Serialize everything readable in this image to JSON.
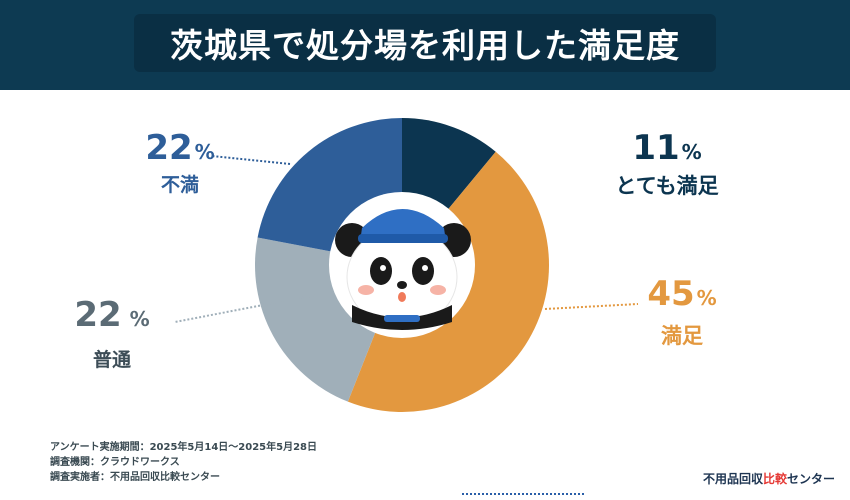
{
  "header": {
    "title": "茨城県で処分場を利用した満足度"
  },
  "chart_data": {
    "type": "pie",
    "categories": [
      "とても満足",
      "満足",
      "普通",
      "不満"
    ],
    "values": [
      11,
      45,
      22,
      22
    ],
    "unit": "%",
    "colors": [
      "#0c3550",
      "#e3983f",
      "#a0afb9",
      "#2e5e99"
    ]
  },
  "labels": {
    "very_satisfied": {
      "value": "11",
      "unit": "%",
      "name": "とても満足"
    },
    "satisfied": {
      "value": "45",
      "unit": "%",
      "name": "満足"
    },
    "neutral": {
      "value": "22",
      "unit": "%",
      "name": "普通"
    },
    "dissatisfied": {
      "value": "22",
      "unit": "%",
      "name": "不満"
    }
  },
  "footnote": {
    "line1": "アンケート実施期間：2025年5月14日〜2025年5月28日",
    "line2": "調査機関：クラウドワークス",
    "line3": "調査実施者：不用品回収比較センター"
  },
  "brand": {
    "part1": "不用品回収",
    "part2": "比較",
    "part3": "センター"
  }
}
